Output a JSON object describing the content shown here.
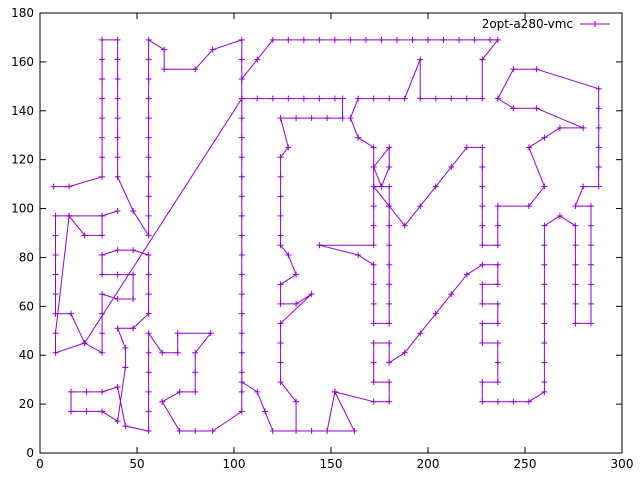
{
  "chart_data": {
    "type": "line",
    "title": "",
    "xlabel": "",
    "ylabel": "",
    "xlim": [
      0,
      300
    ],
    "ylim": [
      0,
      180
    ],
    "xticks": [
      "0",
      "50",
      "100",
      "150",
      "200",
      "250",
      "300"
    ],
    "yticks": [
      "0",
      "20",
      "40",
      "60",
      "80",
      "100",
      "120",
      "140",
      "160",
      "180"
    ],
    "grid": false,
    "legend_position": "top-right",
    "series": [
      {
        "name": "2opt-a280-vmc",
        "color": "#9400d3",
        "marker": "plus",
        "points": [
          [
            7,
            109
          ],
          [
            15,
            109
          ],
          [
            32,
            113
          ],
          [
            32,
            121
          ],
          [
            32,
            129
          ],
          [
            32,
            137
          ],
          [
            32,
            145
          ],
          [
            32,
            153
          ],
          [
            32,
            161
          ],
          [
            32,
            169
          ],
          [
            40,
            169
          ],
          [
            40,
            161
          ],
          [
            40,
            153
          ],
          [
            40,
            145
          ],
          [
            40,
            137
          ],
          [
            40,
            129
          ],
          [
            40,
            121
          ],
          [
            40,
            113
          ],
          [
            48,
            99
          ],
          [
            56,
            89
          ],
          [
            56,
            97
          ],
          [
            56,
            105
          ],
          [
            56,
            113
          ],
          [
            56,
            121
          ],
          [
            56,
            129
          ],
          [
            56,
            137
          ],
          [
            56,
            145
          ],
          [
            56,
            153
          ],
          [
            56,
            161
          ],
          [
            56,
            169
          ],
          [
            64,
            165
          ],
          [
            64,
            157
          ],
          [
            80,
            157
          ],
          [
            89,
            165
          ],
          [
            104,
            169
          ],
          [
            104,
            161
          ],
          [
            104,
            153
          ],
          [
            104,
            145
          ],
          [
            104,
            137
          ],
          [
            104,
            129
          ],
          [
            104,
            121
          ],
          [
            104,
            113
          ],
          [
            104,
            105
          ],
          [
            104,
            97
          ],
          [
            104,
            89
          ],
          [
            104,
            81
          ],
          [
            104,
            73
          ],
          [
            104,
            65
          ],
          [
            104,
            57
          ],
          [
            104,
            49
          ],
          [
            104,
            41
          ],
          [
            104,
            33
          ],
          [
            104,
            25
          ],
          [
            104,
            17
          ],
          [
            89,
            9
          ],
          [
            80,
            9
          ],
          [
            72,
            9
          ],
          [
            63,
            21
          ],
          [
            72,
            25
          ],
          [
            80,
            25
          ],
          [
            80,
            33
          ],
          [
            80,
            41
          ],
          [
            88,
            49
          ],
          [
            71,
            49
          ],
          [
            71,
            41
          ],
          [
            63,
            41
          ],
          [
            56,
            49
          ],
          [
            56,
            41
          ],
          [
            56,
            33
          ],
          [
            56,
            25
          ],
          [
            56,
            17
          ],
          [
            56,
            9
          ],
          [
            44,
            11
          ],
          [
            40,
            27
          ],
          [
            32,
            25
          ],
          [
            24,
            25
          ],
          [
            16,
            25
          ],
          [
            16,
            17
          ],
          [
            24,
            17
          ],
          [
            32,
            17
          ],
          [
            40,
            13
          ],
          [
            44,
            35
          ],
          [
            44,
            43
          ],
          [
            40,
            51
          ],
          [
            48,
            51
          ],
          [
            56,
            57
          ],
          [
            56,
            65
          ],
          [
            56,
            73
          ],
          [
            56,
            81
          ],
          [
            48,
            83
          ],
          [
            40,
            83
          ],
          [
            32,
            81
          ],
          [
            32,
            73
          ],
          [
            40,
            73
          ],
          [
            48,
            73
          ],
          [
            48,
            63
          ],
          [
            40,
            63
          ],
          [
            32,
            65
          ],
          [
            32,
            57
          ],
          [
            32,
            49
          ],
          [
            32,
            41
          ],
          [
            23,
            45
          ],
          [
            16,
            57
          ],
          [
            8,
            57
          ],
          [
            8,
            65
          ],
          [
            8,
            73
          ],
          [
            8,
            81
          ],
          [
            8,
            89
          ],
          [
            8,
            97
          ],
          [
            15,
            97
          ],
          [
            23,
            89
          ],
          [
            32,
            89
          ],
          [
            32,
            97
          ],
          [
            40,
            99
          ],
          [
            32,
            97
          ],
          [
            15,
            97
          ],
          [
            8,
            49
          ],
          [
            8,
            41
          ],
          [
            23,
            45
          ],
          [
            104,
            145
          ],
          [
            112,
            145
          ],
          [
            120,
            145
          ],
          [
            128,
            145
          ],
          [
            136,
            145
          ],
          [
            144,
            145
          ],
          [
            152,
            145
          ],
          [
            156,
            145
          ],
          [
            156,
            137
          ],
          [
            148,
            137
          ],
          [
            140,
            137
          ],
          [
            132,
            137
          ],
          [
            124,
            137
          ],
          [
            128,
            125
          ],
          [
            124,
            121
          ],
          [
            124,
            113
          ],
          [
            124,
            105
          ],
          [
            124,
            97
          ],
          [
            124,
            89
          ],
          [
            124,
            85
          ],
          [
            128,
            81
          ],
          [
            132,
            73
          ],
          [
            124,
            69
          ],
          [
            124,
            61
          ],
          [
            132,
            61
          ],
          [
            140,
            65
          ],
          [
            124,
            53
          ],
          [
            124,
            45
          ],
          [
            124,
            37
          ],
          [
            124,
            29
          ],
          [
            132,
            21
          ],
          [
            132,
            9
          ],
          [
            140,
            9
          ],
          [
            148,
            9
          ],
          [
            152,
            25
          ],
          [
            162,
            9
          ],
          [
            120,
            9
          ],
          [
            116,
            17
          ],
          [
            112,
            25
          ],
          [
            104,
            29
          ],
          [
            104,
            153
          ],
          [
            112,
            161
          ],
          [
            120,
            169
          ],
          [
            128,
            169
          ],
          [
            136,
            169
          ],
          [
            144,
            169
          ],
          [
            152,
            169
          ],
          [
            160,
            169
          ],
          [
            168,
            169
          ],
          [
            176,
            169
          ],
          [
            184,
            169
          ],
          [
            192,
            169
          ],
          [
            200,
            169
          ],
          [
            208,
            169
          ],
          [
            216,
            169
          ],
          [
            224,
            169
          ],
          [
            232,
            169
          ],
          [
            236,
            169
          ],
          [
            228,
            161
          ],
          [
            228,
            145
          ],
          [
            220,
            145
          ],
          [
            212,
            145
          ],
          [
            204,
            145
          ],
          [
            196,
            145
          ],
          [
            196,
            161
          ],
          [
            188,
            145
          ],
          [
            180,
            145
          ],
          [
            172,
            145
          ],
          [
            164,
            145
          ],
          [
            160,
            137
          ],
          [
            164,
            129
          ],
          [
            172,
            125
          ],
          [
            172,
            117
          ],
          [
            176,
            109
          ],
          [
            180,
            117
          ],
          [
            180,
            125
          ],
          [
            172,
            117
          ],
          [
            172,
            109
          ],
          [
            172,
            101
          ],
          [
            172,
            93
          ],
          [
            172,
            85
          ],
          [
            144,
            85
          ],
          [
            164,
            81
          ],
          [
            172,
            77
          ],
          [
            172,
            69
          ],
          [
            172,
            61
          ],
          [
            172,
            53
          ],
          [
            180,
            53
          ],
          [
            180,
            61
          ],
          [
            180,
            69
          ],
          [
            180,
            77
          ],
          [
            180,
            85
          ],
          [
            180,
            93
          ],
          [
            180,
            101
          ],
          [
            180,
            109
          ],
          [
            172,
            109
          ],
          [
            180,
            101
          ],
          [
            188,
            93
          ],
          [
            196,
            101
          ],
          [
            204,
            109
          ],
          [
            212,
            117
          ],
          [
            220,
            125
          ],
          [
            228,
            125
          ],
          [
            228,
            117
          ],
          [
            228,
            109
          ],
          [
            228,
            101
          ],
          [
            228,
            93
          ],
          [
            228,
            85
          ],
          [
            236,
            85
          ],
          [
            236,
            93
          ],
          [
            236,
            101
          ],
          [
            252,
            101
          ],
          [
            260,
            109
          ],
          [
            252,
            125
          ],
          [
            260,
            129
          ],
          [
            268,
            133
          ],
          [
            280,
            133
          ],
          [
            256,
            141
          ],
          [
            244,
            141
          ],
          [
            236,
            145
          ],
          [
            244,
            157
          ],
          [
            256,
            157
          ],
          [
            288,
            149
          ],
          [
            288,
            141
          ],
          [
            288,
            133
          ],
          [
            288,
            125
          ],
          [
            288,
            117
          ],
          [
            288,
            109
          ],
          [
            280,
            109
          ],
          [
            276,
            101
          ],
          [
            284,
            101
          ],
          [
            284,
            93
          ],
          [
            284,
            85
          ],
          [
            284,
            77
          ],
          [
            284,
            69
          ],
          [
            284,
            61
          ],
          [
            284,
            53
          ],
          [
            276,
            53
          ],
          [
            276,
            61
          ],
          [
            276,
            69
          ],
          [
            276,
            77
          ],
          [
            276,
            85
          ],
          [
            276,
            93
          ],
          [
            268,
            97
          ],
          [
            260,
            93
          ],
          [
            260,
            85
          ],
          [
            260,
            77
          ],
          [
            260,
            69
          ],
          [
            260,
            61
          ],
          [
            260,
            53
          ],
          [
            260,
            45
          ],
          [
            260,
            37
          ],
          [
            260,
            29
          ],
          [
            260,
            25
          ],
          [
            252,
            21
          ],
          [
            244,
            21
          ],
          [
            236,
            21
          ],
          [
            228,
            21
          ],
          [
            228,
            29
          ],
          [
            236,
            29
          ],
          [
            236,
            37
          ],
          [
            236,
            45
          ],
          [
            228,
            45
          ],
          [
            228,
            53
          ],
          [
            236,
            53
          ],
          [
            236,
            61
          ],
          [
            228,
            61
          ],
          [
            228,
            69
          ],
          [
            236,
            69
          ],
          [
            236,
            77
          ],
          [
            228,
            77
          ],
          [
            220,
            73
          ],
          [
            212,
            65
          ],
          [
            204,
            57
          ],
          [
            196,
            49
          ],
          [
            188,
            41
          ],
          [
            180,
            37
          ],
          [
            180,
            45
          ],
          [
            172,
            45
          ],
          [
            172,
            37
          ],
          [
            172,
            29
          ],
          [
            180,
            29
          ],
          [
            180,
            21
          ],
          [
            172,
            21
          ],
          [
            152,
            25
          ]
        ]
      }
    ]
  }
}
